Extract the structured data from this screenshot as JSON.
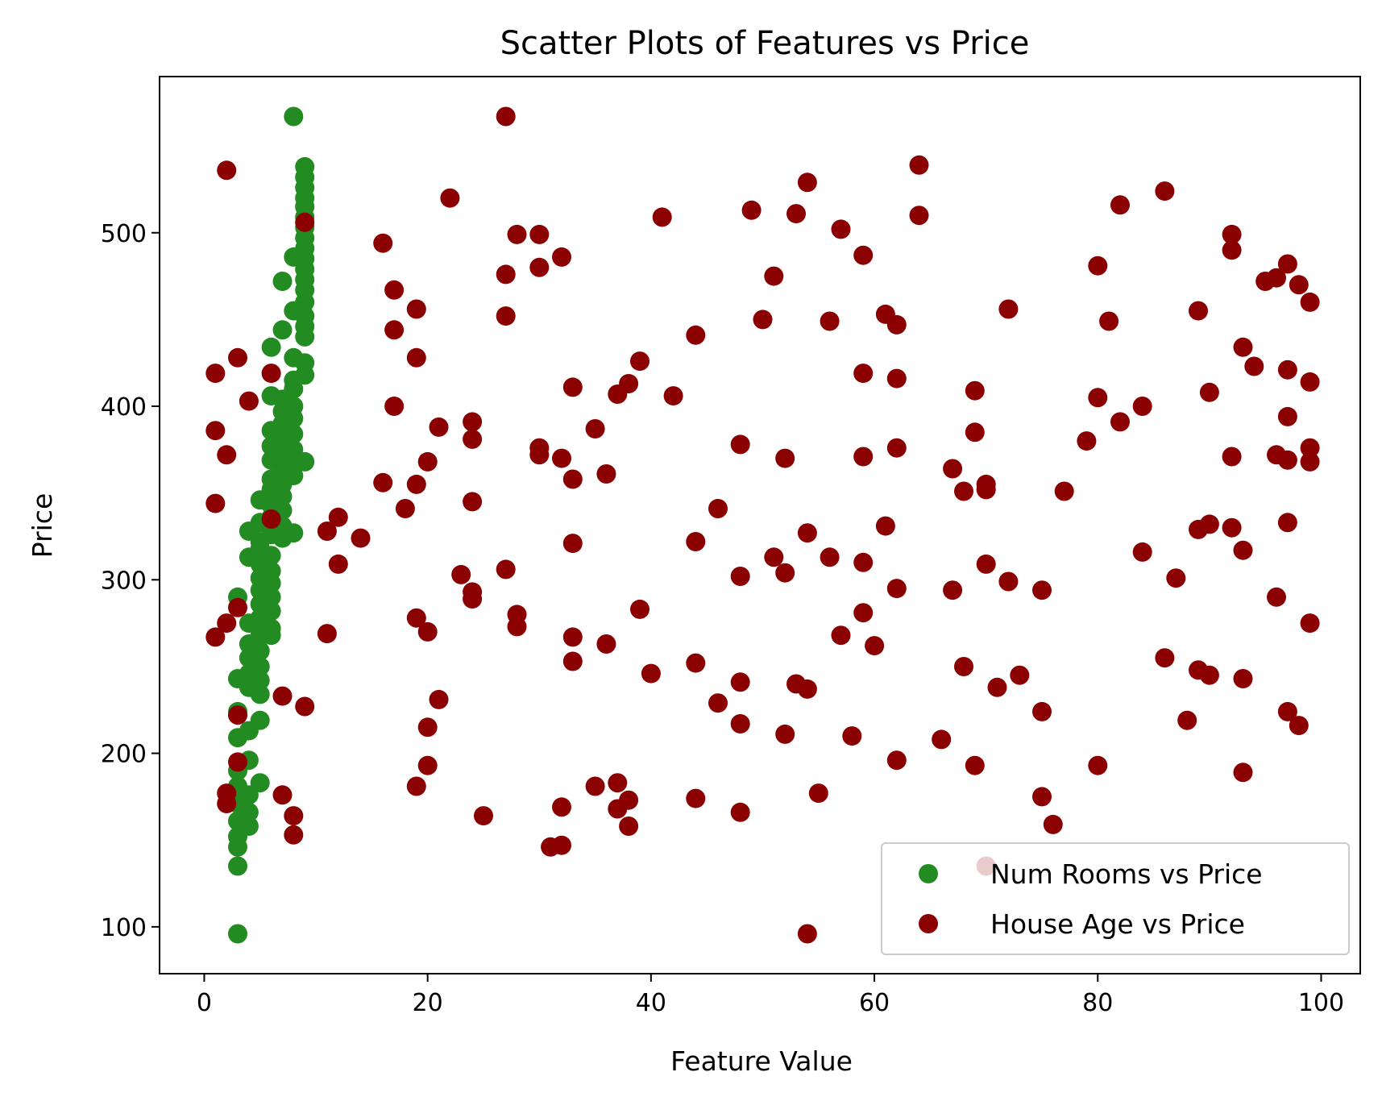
{
  "chart_data": {
    "type": "scatter",
    "title": "Scatter Plots of Features vs Price",
    "xlabel": "Feature Value",
    "ylabel": "Price",
    "xlim": [
      -4,
      103.5
    ],
    "ylim": [
      73,
      590
    ],
    "xticks": [
      0,
      20,
      40,
      60,
      80,
      100
    ],
    "yticks": [
      100,
      200,
      300,
      400,
      500
    ],
    "grid": false,
    "legend_position": "lower-right",
    "series": [
      {
        "name": "Num Rooms vs Price",
        "color": "#228B22",
        "points": [
          [
            8,
            567
          ],
          [
            9,
            538
          ],
          [
            9,
            532
          ],
          [
            9,
            526
          ],
          [
            9,
            520
          ],
          [
            9,
            515
          ],
          [
            9,
            509
          ],
          [
            9,
            503
          ],
          [
            9,
            497
          ],
          [
            9,
            491
          ],
          [
            9,
            485
          ],
          [
            8,
            486
          ],
          [
            9,
            479
          ],
          [
            9,
            473
          ],
          [
            7,
            472
          ],
          [
            9,
            467
          ],
          [
            9,
            460
          ],
          [
            8,
            455
          ],
          [
            9,
            452
          ],
          [
            9,
            446
          ],
          [
            7,
            444
          ],
          [
            9,
            440
          ],
          [
            6,
            434
          ],
          [
            8,
            428
          ],
          [
            9,
            425
          ],
          [
            9,
            418
          ],
          [
            8,
            415
          ],
          [
            8,
            410
          ],
          [
            6,
            406
          ],
          [
            7,
            404
          ],
          [
            8,
            400
          ],
          [
            7,
            397
          ],
          [
            8,
            393
          ],
          [
            7,
            390
          ],
          [
            6,
            386
          ],
          [
            8,
            384
          ],
          [
            7,
            380
          ],
          [
            6,
            377
          ],
          [
            8,
            375
          ],
          [
            7,
            372
          ],
          [
            6,
            369
          ],
          [
            8,
            366
          ],
          [
            9,
            368
          ],
          [
            7,
            363
          ],
          [
            8,
            360
          ],
          [
            6,
            358
          ],
          [
            7,
            355
          ],
          [
            6,
            352
          ],
          [
            7,
            348
          ],
          [
            5,
            346
          ],
          [
            6,
            343
          ],
          [
            7,
            340
          ],
          [
            6,
            336
          ],
          [
            5,
            333
          ],
          [
            4,
            328
          ],
          [
            7,
            331
          ],
          [
            6,
            326
          ],
          [
            5,
            322
          ],
          [
            8,
            327
          ],
          [
            7,
            324
          ],
          [
            5,
            318
          ],
          [
            6,
            314
          ],
          [
            4,
            313
          ],
          [
            5,
            309
          ],
          [
            6,
            305
          ],
          [
            5,
            301
          ],
          [
            6,
            298
          ],
          [
            5,
            294
          ],
          [
            3,
            290
          ],
          [
            6,
            290
          ],
          [
            5,
            286
          ],
          [
            6,
            282
          ],
          [
            5,
            278
          ],
          [
            4,
            275
          ],
          [
            6,
            272
          ],
          [
            5,
            268
          ],
          [
            4,
            263
          ],
          [
            6,
            268
          ],
          [
            5,
            259
          ],
          [
            4,
            255
          ],
          [
            5,
            250
          ],
          [
            4,
            246
          ],
          [
            3,
            243
          ],
          [
            5,
            242
          ],
          [
            4,
            238
          ],
          [
            5,
            234
          ],
          [
            3,
            224
          ],
          [
            5,
            219
          ],
          [
            4,
            213
          ],
          [
            3,
            209
          ],
          [
            4,
            196
          ],
          [
            3,
            190
          ],
          [
            5,
            183
          ],
          [
            3,
            181
          ],
          [
            4,
            176
          ],
          [
            3,
            171
          ],
          [
            4,
            166
          ],
          [
            3,
            161
          ],
          [
            4,
            158
          ],
          [
            3,
            152
          ],
          [
            3,
            146
          ],
          [
            3,
            135
          ],
          [
            3,
            96
          ]
        ]
      },
      {
        "name": "House Age vs Price",
        "color": "#8B0000",
        "points": [
          [
            2,
            536
          ],
          [
            1,
            419
          ],
          [
            3,
            428
          ],
          [
            1,
            386
          ],
          [
            2,
            372
          ],
          [
            4,
            403
          ],
          [
            1,
            344
          ],
          [
            6,
            419
          ],
          [
            6,
            335
          ],
          [
            1,
            267
          ],
          [
            2,
            275
          ],
          [
            3,
            284
          ],
          [
            3,
            222
          ],
          [
            3,
            195
          ],
          [
            2,
            177
          ],
          [
            2,
            171
          ],
          [
            7,
            233
          ],
          [
            7,
            176
          ],
          [
            9,
            506
          ],
          [
            9,
            227
          ],
          [
            8,
            164
          ],
          [
            8,
            153
          ],
          [
            11,
            328
          ],
          [
            11,
            269
          ],
          [
            12,
            336
          ],
          [
            12,
            309
          ],
          [
            14,
            324
          ],
          [
            16,
            494
          ],
          [
            16,
            356
          ],
          [
            17,
            467
          ],
          [
            17,
            444
          ],
          [
            17,
            400
          ],
          [
            18,
            341
          ],
          [
            19,
            456
          ],
          [
            19,
            428
          ],
          [
            19,
            355
          ],
          [
            19,
            278
          ],
          [
            19,
            181
          ],
          [
            20,
            368
          ],
          [
            20,
            270
          ],
          [
            20,
            215
          ],
          [
            20,
            193
          ],
          [
            21,
            388
          ],
          [
            21,
            231
          ],
          [
            22,
            520
          ],
          [
            23,
            303
          ],
          [
            24,
            391
          ],
          [
            24,
            381
          ],
          [
            24,
            345
          ],
          [
            24,
            293
          ],
          [
            24,
            289
          ],
          [
            25,
            164
          ],
          [
            27,
            567
          ],
          [
            27,
            476
          ],
          [
            27,
            452
          ],
          [
            27,
            306
          ],
          [
            28,
            499
          ],
          [
            28,
            280
          ],
          [
            28,
            273
          ],
          [
            30,
            499
          ],
          [
            30,
            480
          ],
          [
            30,
            376
          ],
          [
            30,
            372
          ],
          [
            31,
            146
          ],
          [
            32,
            486
          ],
          [
            32,
            370
          ],
          [
            32,
            169
          ],
          [
            32,
            147
          ],
          [
            33,
            411
          ],
          [
            33,
            358
          ],
          [
            33,
            321
          ],
          [
            33,
            267
          ],
          [
            33,
            253
          ],
          [
            35,
            387
          ],
          [
            35,
            181
          ],
          [
            36,
            361
          ],
          [
            36,
            263
          ],
          [
            37,
            407
          ],
          [
            37,
            183
          ],
          [
            37,
            168
          ],
          [
            38,
            413
          ],
          [
            38,
            173
          ],
          [
            38,
            158
          ],
          [
            39,
            426
          ],
          [
            39,
            283
          ],
          [
            40,
            246
          ],
          [
            41,
            509
          ],
          [
            42,
            406
          ],
          [
            44,
            441
          ],
          [
            44,
            322
          ],
          [
            44,
            252
          ],
          [
            44,
            174
          ],
          [
            46,
            341
          ],
          [
            46,
            229
          ],
          [
            48,
            378
          ],
          [
            48,
            302
          ],
          [
            48,
            241
          ],
          [
            48,
            217
          ],
          [
            48,
            166
          ],
          [
            49,
            513
          ],
          [
            50,
            450
          ],
          [
            51,
            475
          ],
          [
            51,
            313
          ],
          [
            52,
            370
          ],
          [
            52,
            304
          ],
          [
            52,
            211
          ],
          [
            53,
            511
          ],
          [
            53,
            240
          ],
          [
            54,
            529
          ],
          [
            54,
            327
          ],
          [
            54,
            237
          ],
          [
            54,
            96
          ],
          [
            55,
            177
          ],
          [
            56,
            449
          ],
          [
            56,
            313
          ],
          [
            57,
            502
          ],
          [
            57,
            268
          ],
          [
            58,
            210
          ],
          [
            59,
            487
          ],
          [
            59,
            419
          ],
          [
            59,
            371
          ],
          [
            59,
            310
          ],
          [
            59,
            281
          ],
          [
            60,
            262
          ],
          [
            61,
            453
          ],
          [
            61,
            331
          ],
          [
            62,
            447
          ],
          [
            62,
            416
          ],
          [
            62,
            376
          ],
          [
            62,
            295
          ],
          [
            62,
            196
          ],
          [
            64,
            539
          ],
          [
            64,
            510
          ],
          [
            66,
            208
          ],
          [
            67,
            364
          ],
          [
            67,
            294
          ],
          [
            68,
            351
          ],
          [
            68,
            250
          ],
          [
            69,
            409
          ],
          [
            69,
            385
          ],
          [
            69,
            193
          ],
          [
            70,
            355
          ],
          [
            70,
            352
          ],
          [
            70,
            309
          ],
          [
            70,
            135
          ],
          [
            71,
            238
          ],
          [
            72,
            456
          ],
          [
            72,
            299
          ],
          [
            73,
            245
          ],
          [
            75,
            294
          ],
          [
            75,
            224
          ],
          [
            75,
            175
          ],
          [
            76,
            159
          ],
          [
            77,
            351
          ],
          [
            79,
            380
          ],
          [
            80,
            481
          ],
          [
            80,
            405
          ],
          [
            80,
            193
          ],
          [
            81,
            449
          ],
          [
            82,
            516
          ],
          [
            82,
            391
          ],
          [
            84,
            400
          ],
          [
            84,
            316
          ],
          [
            86,
            524
          ],
          [
            86,
            255
          ],
          [
            87,
            301
          ],
          [
            88,
            219
          ],
          [
            89,
            455
          ],
          [
            89,
            329
          ],
          [
            89,
            248
          ],
          [
            90,
            408
          ],
          [
            90,
            332
          ],
          [
            90,
            245
          ],
          [
            92,
            499
          ],
          [
            92,
            490
          ],
          [
            92,
            371
          ],
          [
            92,
            330
          ],
          [
            93,
            434
          ],
          [
            93,
            317
          ],
          [
            93,
            243
          ],
          [
            93,
            189
          ],
          [
            94,
            423
          ],
          [
            95,
            472
          ],
          [
            96,
            474
          ],
          [
            96,
            372
          ],
          [
            96,
            290
          ],
          [
            97,
            482
          ],
          [
            97,
            421
          ],
          [
            97,
            394
          ],
          [
            97,
            369
          ],
          [
            97,
            333
          ],
          [
            97,
            224
          ],
          [
            98,
            470
          ],
          [
            98,
            216
          ],
          [
            99,
            460
          ],
          [
            99,
            414
          ],
          [
            99,
            376
          ],
          [
            99,
            368
          ],
          [
            99,
            275
          ]
        ]
      }
    ]
  }
}
